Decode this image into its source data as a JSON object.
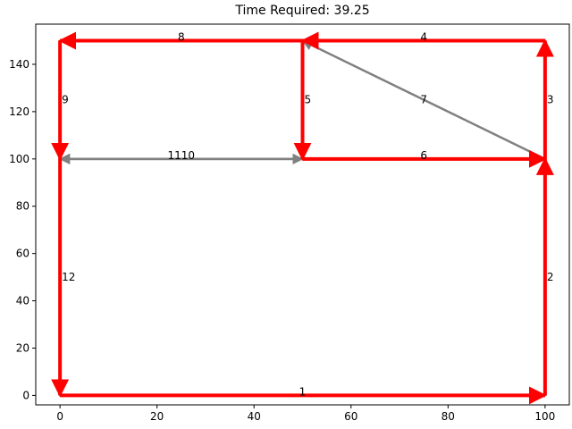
{
  "chart_data": {
    "type": "directed-graph",
    "title": "Time Required: 39.25",
    "xlabel": "",
    "ylabel": "",
    "xlim": [
      -5,
      105
    ],
    "ylim": [
      -4,
      157
    ],
    "xticks": [
      0,
      20,
      40,
      60,
      80,
      100
    ],
    "yticks": [
      0,
      20,
      40,
      60,
      80,
      100,
      120,
      140
    ],
    "grid": false,
    "colors": {
      "highlighted": "#ff0000",
      "normal": "#808080"
    },
    "edges": [
      {
        "label": "1",
        "from": [
          0,
          0
        ],
        "to": [
          100,
          0
        ],
        "highlighted": true
      },
      {
        "label": "2",
        "from": [
          100,
          0
        ],
        "to": [
          100,
          100
        ],
        "highlighted": true
      },
      {
        "label": "3",
        "from": [
          100,
          100
        ],
        "to": [
          100,
          150
        ],
        "highlighted": true
      },
      {
        "label": "4",
        "from": [
          100,
          150
        ],
        "to": [
          50,
          150
        ],
        "highlighted": true
      },
      {
        "label": "5",
        "from": [
          50,
          150
        ],
        "to": [
          50,
          100
        ],
        "highlighted": true
      },
      {
        "label": "6",
        "from": [
          50,
          100
        ],
        "to": [
          100,
          100
        ],
        "highlighted": true
      },
      {
        "label": "7",
        "from": [
          100,
          100
        ],
        "to": [
          50,
          150
        ],
        "highlighted": false
      },
      {
        "label": "8",
        "from": [
          50,
          150
        ],
        "to": [
          0,
          150
        ],
        "highlighted": true
      },
      {
        "label": "9",
        "from": [
          0,
          150
        ],
        "to": [
          0,
          100
        ],
        "highlighted": true
      },
      {
        "label": "10",
        "from": [
          0,
          100
        ],
        "to": [
          50,
          100
        ],
        "highlighted": false
      },
      {
        "label": "11",
        "from": [
          50,
          100
        ],
        "to": [
          0,
          100
        ],
        "highlighted": false
      },
      {
        "label": "12",
        "from": [
          0,
          100
        ],
        "to": [
          0,
          0
        ],
        "highlighted": true
      }
    ]
  }
}
